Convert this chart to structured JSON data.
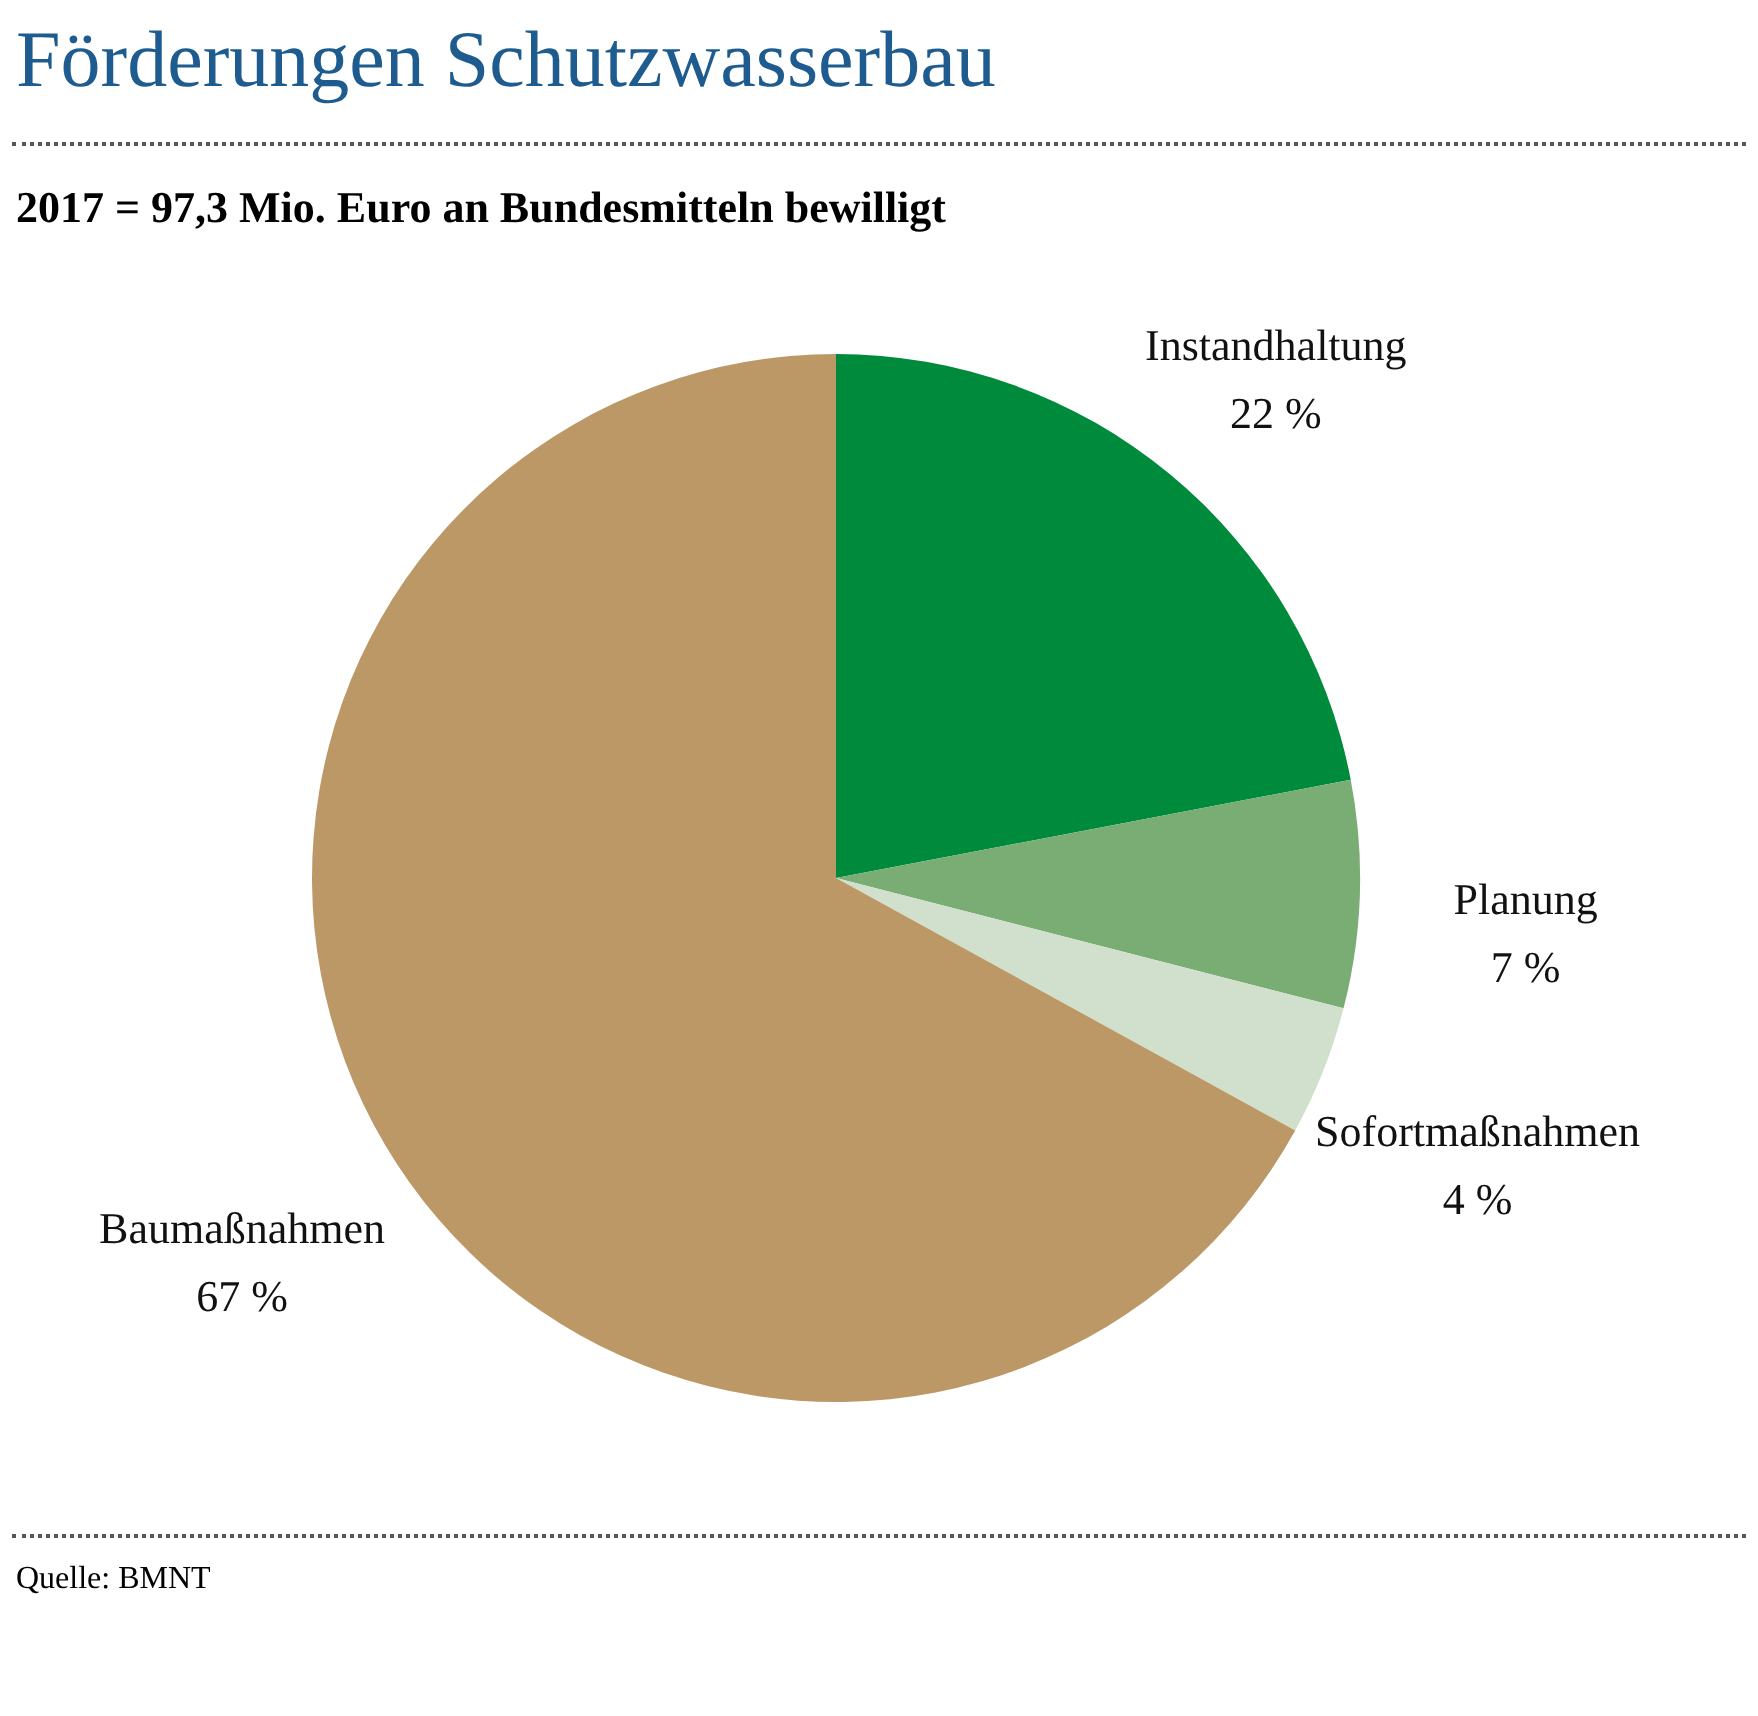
{
  "chart_data": {
    "type": "pie",
    "title": "Förderungen Schutzwasserbau",
    "subtitle": "2017 = 97,3 Mio. Euro an Bundesmitteln bewilligt",
    "categories": [
      "Instandhaltung",
      "Planung",
      "Sofortmaßnahmen",
      "Baumaßnahmen"
    ],
    "values": [
      22,
      7,
      4,
      67
    ],
    "colors": [
      "#008a3b",
      "#79ad74",
      "#d0e0cc",
      "#bb9866"
    ],
    "value_labels": [
      "22 %",
      "7 %",
      "4 %",
      "67 %"
    ],
    "annotations": [
      "Quelle: BMNT"
    ]
  }
}
